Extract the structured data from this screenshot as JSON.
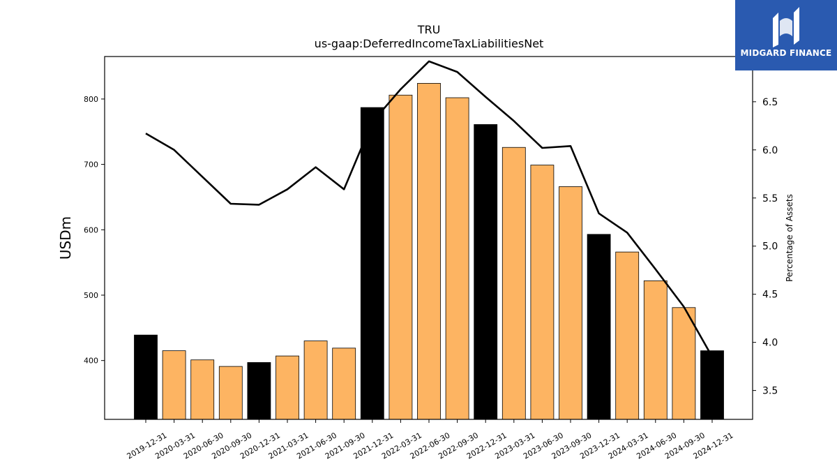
{
  "chart_data": {
    "type": "bar",
    "title": "TRU",
    "subtitle": "us-gaap:DeferredIncomeTaxLiabilitiesNet",
    "ylabel": "USDm",
    "y2label": "Percentage of Assets",
    "ylim": [
      310,
      865
    ],
    "y2lim": [
      3.2,
      6.97
    ],
    "yticks": [
      400,
      500,
      600,
      700,
      800
    ],
    "y2ticks": [
      3.5,
      4.0,
      4.5,
      5.0,
      5.5,
      6.0,
      6.5
    ],
    "categories": [
      "2019-12-31",
      "2020-03-31",
      "2020-06-30",
      "2020-09-30",
      "2020-12-31",
      "2021-03-31",
      "2021-06-30",
      "2021-09-30",
      "2021-12-31",
      "2022-03-31",
      "2022-06-30",
      "2022-09-30",
      "2022-12-31",
      "2023-03-31",
      "2023-06-30",
      "2023-09-30",
      "2023-12-31",
      "2024-03-31",
      "2024-06-30",
      "2024-09-30",
      "2024-12-31"
    ],
    "series": [
      {
        "type": "bar",
        "axis": "left",
        "values": [
          439,
          415,
          401,
          391,
          397,
          407,
          430,
          419,
          787,
          806,
          824,
          802,
          761,
          726,
          699,
          666,
          593,
          566,
          522,
          481,
          415
        ],
        "year_end": [
          true,
          false,
          false,
          false,
          true,
          false,
          false,
          false,
          true,
          false,
          false,
          false,
          true,
          false,
          false,
          false,
          true,
          false,
          false,
          false,
          true
        ]
      },
      {
        "type": "line",
        "axis": "right",
        "values": [
          6.17,
          6.0,
          5.72,
          5.44,
          5.43,
          5.59,
          5.82,
          5.59,
          6.29,
          6.63,
          6.92,
          6.81,
          6.55,
          6.3,
          6.02,
          6.04,
          5.34,
          5.14,
          4.76,
          4.37,
          3.85
        ]
      }
    ],
    "colors": {
      "year_end_bar": "#000000",
      "quarter_bar": "#fdb462",
      "line": "#000000"
    }
  },
  "logo": {
    "text": "MIDGARD FINANCE",
    "background": "#2a5ab0"
  }
}
